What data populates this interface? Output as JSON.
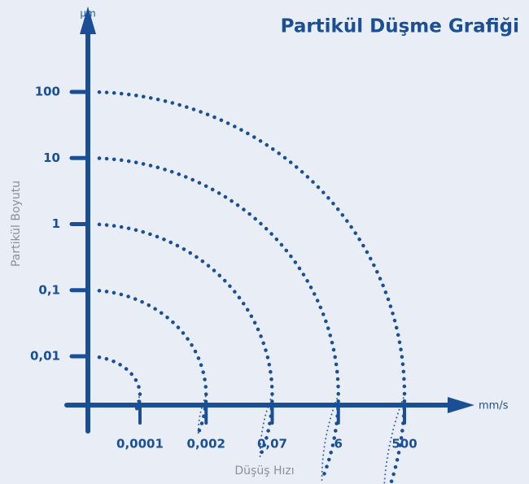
{
  "chart_data": {
    "type": "fall-chart",
    "title": "Partikül Düşme Grafiği",
    "y_unit": "µm",
    "x_unit": "mm/s",
    "ylabel": "Partikül Boyutu",
    "xlabel": "Düşüş Hızı",
    "y_categories": [
      "0,01",
      "0,1",
      "1",
      "10",
      "100"
    ],
    "x_categories": [
      "0,0001",
      "0,002",
      "0,07",
      "6",
      "500"
    ],
    "color": "#1a4f96"
  }
}
